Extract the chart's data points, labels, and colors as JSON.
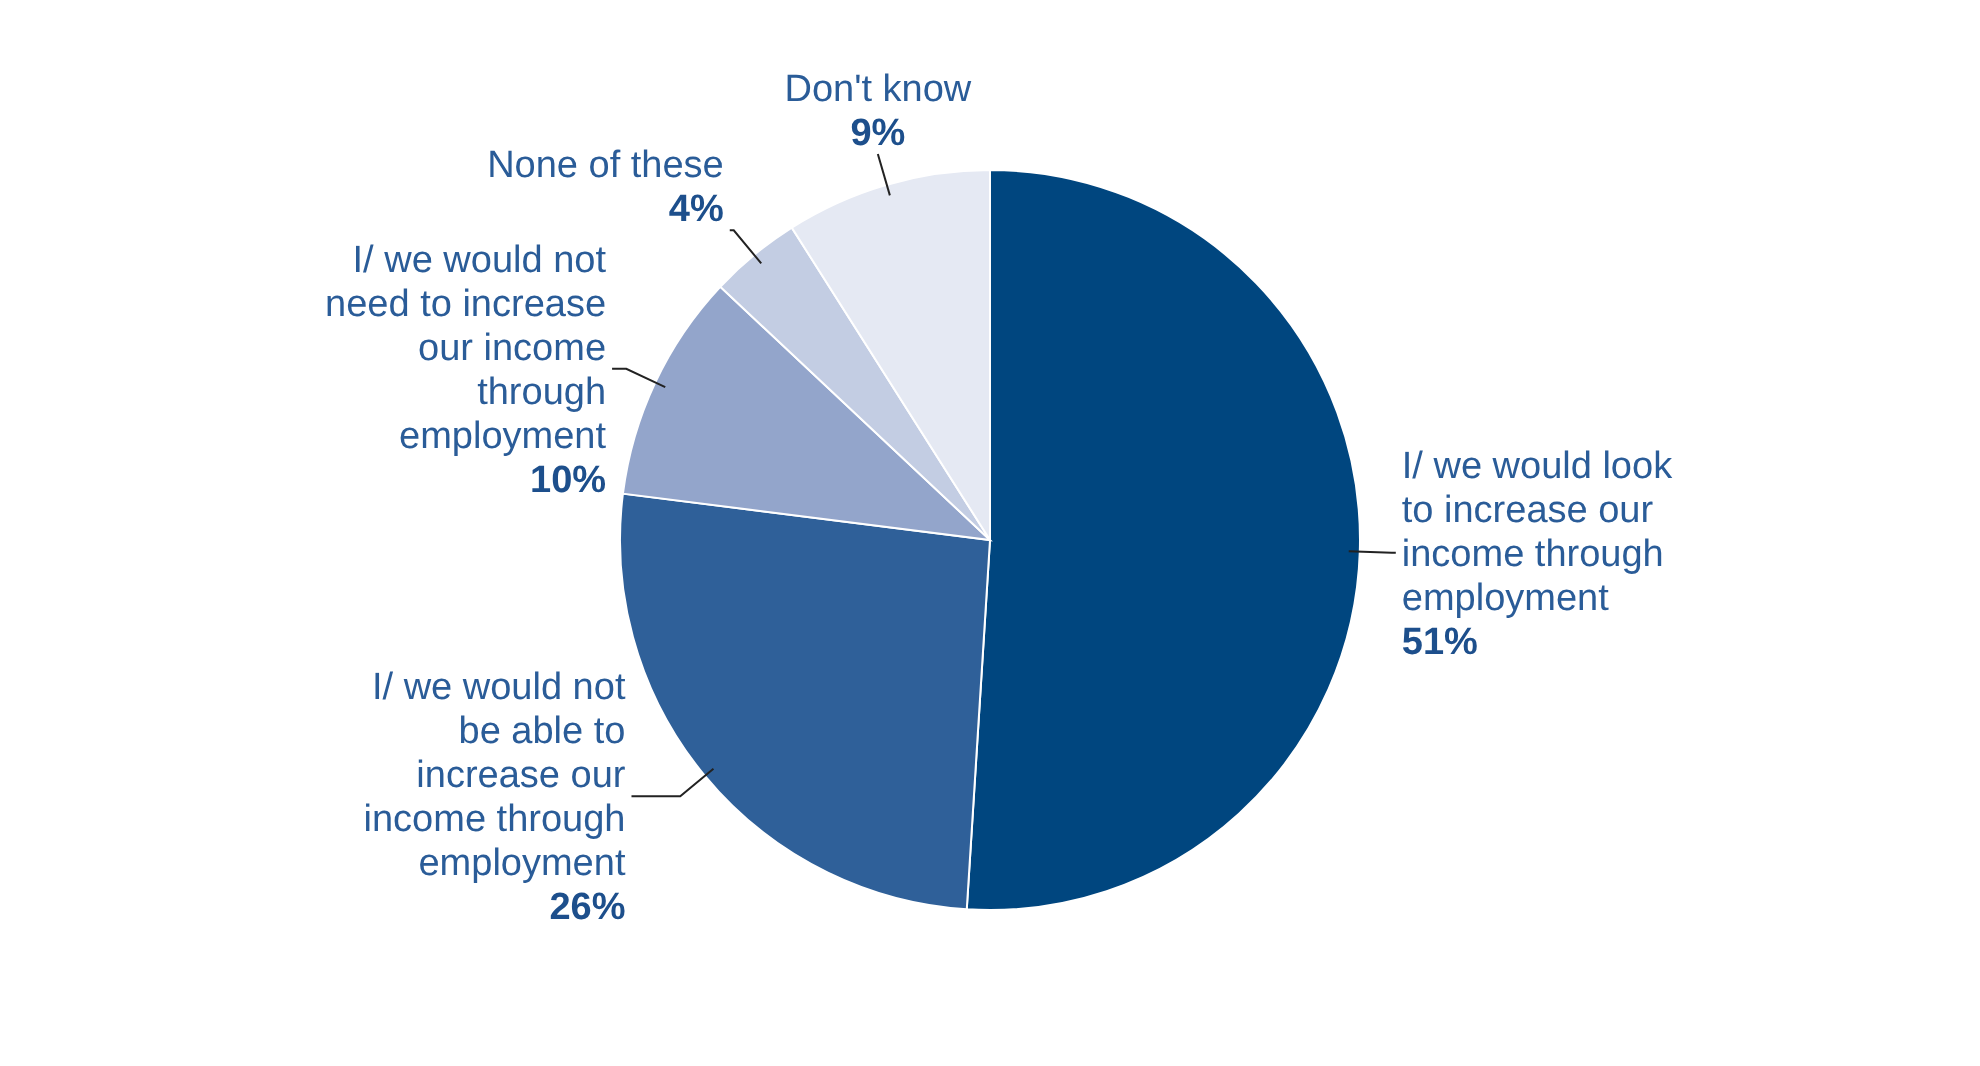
{
  "chart_data": {
    "type": "pie",
    "categories": [
      "I/ we would look to increase our income through employment",
      "I/ we would not be able to increase our income through employment",
      "I/ we would not need to increase our income through employment",
      "None of these",
      "Don't know"
    ],
    "values": [
      51,
      26,
      10,
      4,
      9
    ],
    "value_labels": [
      "51%",
      "26%",
      "10%",
      "4%",
      "9%"
    ],
    "colors": [
      "#00467f",
      "#2f6099",
      "#93a5cb",
      "#c3cde3",
      "#e5e9f3"
    ]
  }
}
